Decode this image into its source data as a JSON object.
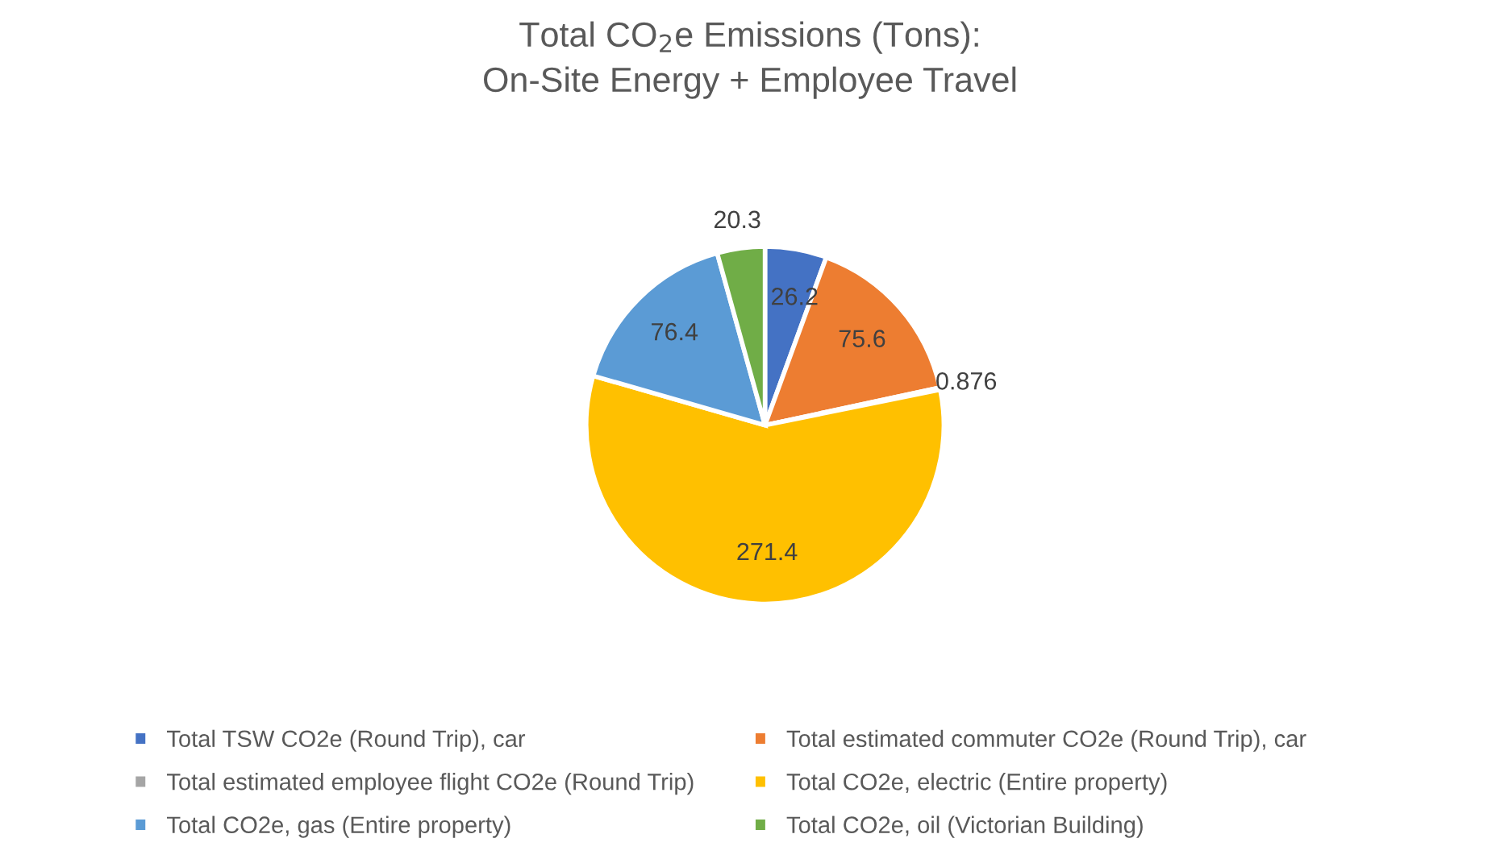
{
  "chart_data": {
    "type": "pie",
    "title": "Total CO$_{2}$e Emissions (Tons):\nOn-Site Energy + Employee Travel",
    "categories": [
      "Total TSW CO2e (Round Trip), car",
      "Total estimated commuter CO2e (Round Trip), car",
      "Total estimated employee flight CO2e (Round Trip)",
      "Total CO2e, electric (Entire property)",
      "Total CO2e, gas (Entire property)",
      "Total CO2e, oil (Victorian Building)"
    ],
    "values": [
      26.2,
      75.6,
      0.876,
      271.4,
      76.4,
      20.3
    ],
    "colors": [
      "#4472c4",
      "#ed7d31",
      "#a5a5a5",
      "#ffc000",
      "#5b9bd5",
      "#70ad47"
    ],
    "data_labels": true,
    "legend": "bottom"
  }
}
